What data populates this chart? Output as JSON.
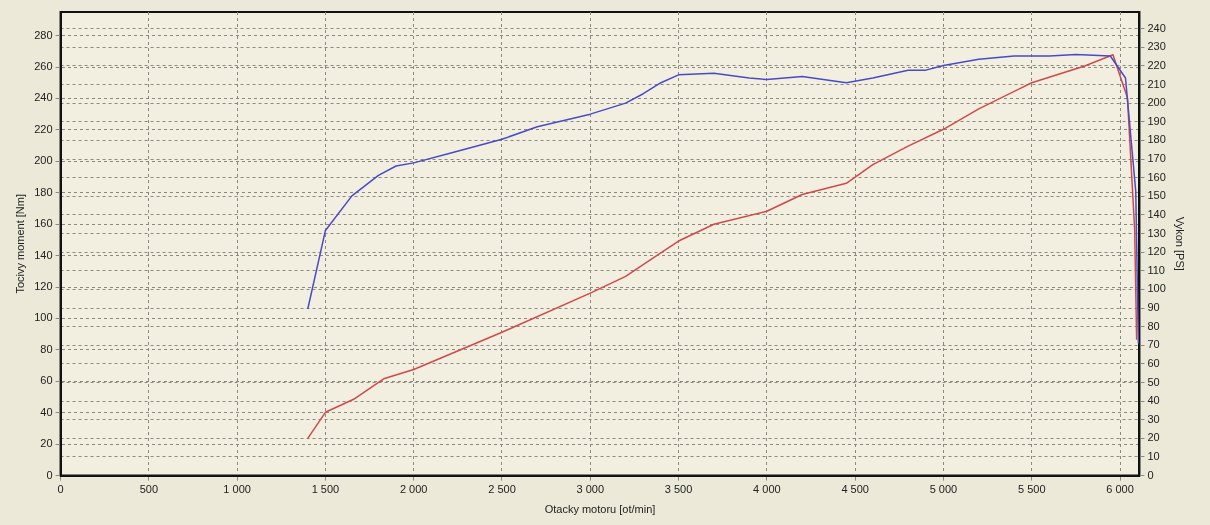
{
  "chart_data": {
    "type": "line",
    "xlabel": "Otacky motoru [ot/min]",
    "ylabel": "Tocivy moment [Nm]",
    "y2label": "Vykon [PS]",
    "xlim": [
      0,
      6110
    ],
    "xticks": [
      0,
      500,
      {
        "value": 1000,
        "label": "1 000"
      },
      {
        "value": 1500,
        "label": "1 500"
      },
      {
        "value": 2000,
        "label": "2 000"
      },
      {
        "value": 2500,
        "label": "2 500"
      },
      {
        "value": 3000,
        "label": "3 000"
      },
      {
        "value": 3500,
        "label": "3 500"
      },
      {
        "value": 4000,
        "label": "4 000"
      },
      {
        "value": 4500,
        "label": "4 500"
      },
      {
        "value": 5000,
        "label": "5 000"
      },
      {
        "value": 5500,
        "label": "5 500"
      },
      {
        "value": 6000,
        "label": "6 000"
      }
    ],
    "ylim": [
      0,
      295
    ],
    "yticks": [
      0,
      20,
      40,
      60,
      80,
      100,
      120,
      140,
      160,
      180,
      200,
      220,
      240,
      260,
      280
    ],
    "y2lim": [
      0,
      249
    ],
    "y2ticks": [
      0,
      10,
      20,
      30,
      40,
      50,
      60,
      70,
      80,
      90,
      100,
      110,
      120,
      130,
      140,
      150,
      160,
      170,
      180,
      190,
      200,
      210,
      220,
      230,
      240
    ],
    "grid": true,
    "legend": false,
    "marker": "none",
    "line_style": "solid",
    "series": [
      {
        "color": "#4a4ac8",
        "x": [
          1400,
          1500,
          1650,
          1800,
          1900,
          2000,
          2200,
          2500,
          2700,
          3000,
          3200,
          3300,
          3400,
          3500,
          3700,
          3900,
          4000,
          4200,
          4450,
          4600,
          4800,
          4900,
          5000,
          5200,
          5400,
          5600,
          5750,
          5945,
          6031,
          6089,
          6104
        ],
        "values": [
          106,
          156,
          178,
          191,
          197,
          199,
          205,
          214,
          222,
          230,
          237,
          243,
          250,
          255,
          256,
          253,
          252,
          254,
          250,
          253,
          258,
          258,
          261,
          265,
          267,
          267,
          268,
          267,
          253,
          181,
          84
        ]
      },
      {
        "color": "#d04a4a",
        "axis": "y2",
        "x": [
          1400,
          1500,
          1660,
          1830,
          2000,
          2500,
          3000,
          3200,
          3500,
          3700,
          4000,
          4200,
          4450,
          4600,
          4800,
          5000,
          5200,
          5500,
          5800,
          5960,
          6042,
          6083,
          6094
        ],
        "values": [
          20,
          34,
          41,
          52,
          57,
          77,
          98,
          107,
          126,
          135,
          142,
          151,
          157,
          167,
          177,
          186,
          197,
          211,
          220,
          226,
          203,
          132,
          73
        ]
      }
    ]
  }
}
